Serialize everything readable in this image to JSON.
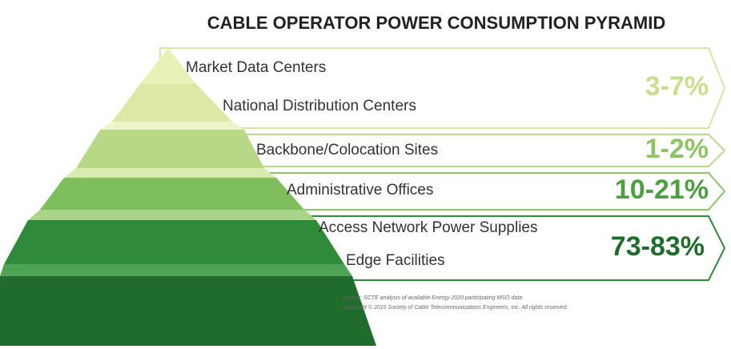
{
  "title": "CABLE OPERATOR POWER CONSUMPTION PYRAMID",
  "groups": [
    {
      "labels": [
        "Market Data Centers",
        "National Distribution Centers"
      ],
      "share": "3-7%"
    },
    {
      "labels": [
        "Backbone/Colocation Sites"
      ],
      "share": "1-2%"
    },
    {
      "labels": [
        "Administrative Offices"
      ],
      "share": "10-21%"
    },
    {
      "labels": [
        "Access Network Power Supplies",
        "Edge Facilities"
      ],
      "share": "73-83%"
    }
  ],
  "source": "Source: SCTE analysis of available Energy 2020 participating MSO data",
  "copyright": "Copyright © 2015 Society of Cable Telecommunications Engineers, Inc. All rights reserved."
}
